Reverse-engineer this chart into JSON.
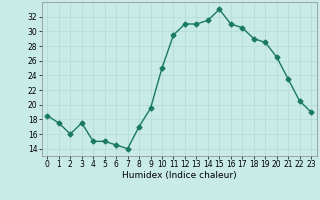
{
  "x": [
    0,
    1,
    2,
    3,
    4,
    5,
    6,
    7,
    8,
    9,
    10,
    11,
    12,
    13,
    14,
    15,
    16,
    17,
    18,
    19,
    20,
    21,
    22,
    23
  ],
  "y": [
    18.5,
    17.5,
    16.0,
    17.5,
    15.0,
    15.0,
    14.5,
    14.0,
    17.0,
    19.5,
    25.0,
    29.5,
    31.0,
    31.0,
    31.5,
    33.0,
    31.0,
    30.5,
    29.0,
    28.5,
    26.5,
    23.5,
    20.5,
    19.0
  ],
  "line_color": "#1a7a5e",
  "marker": "D",
  "markersize": 2.5,
  "linewidth": 1.0,
  "xlabel": "Humidex (Indice chaleur)",
  "xlim": [
    -0.5,
    23.5
  ],
  "ylim": [
    13,
    34
  ],
  "yticks": [
    14,
    16,
    18,
    20,
    22,
    24,
    26,
    28,
    30,
    32
  ],
  "xticks": [
    0,
    1,
    2,
    3,
    4,
    5,
    6,
    7,
    8,
    9,
    10,
    11,
    12,
    13,
    14,
    15,
    16,
    17,
    18,
    19,
    20,
    21,
    22,
    23
  ],
  "bg_color": "#c8ebe8",
  "grid_color": "#b8ddd9",
  "label_fontsize": 6.5,
  "tick_fontsize": 5.5
}
